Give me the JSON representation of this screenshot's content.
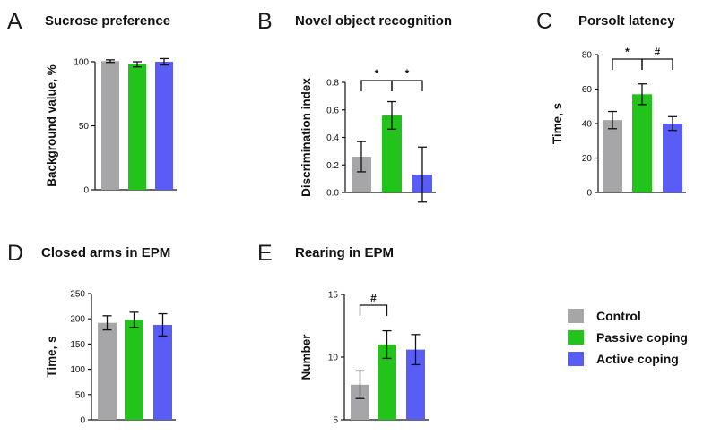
{
  "legend": {
    "items": [
      {
        "label": "Control",
        "color": "#a6a6a8"
      },
      {
        "label": "Passive coping",
        "color": "#22c41c"
      },
      {
        "label": "Active coping",
        "color": "#5a5cf6"
      }
    ]
  },
  "chart_data": [
    {
      "type": "bar",
      "panel_letter": "A",
      "title": "Sucrose preference",
      "ylabel": "Background value, %",
      "ylim": [
        0,
        100
      ],
      "yticks": [
        "0",
        "50",
        "100"
      ],
      "categories": [
        "Control",
        "Passive coping",
        "Active coping"
      ],
      "values": [
        100.5,
        98,
        100
      ],
      "errors": [
        1,
        2,
        2.5
      ],
      "significance": []
    },
    {
      "type": "bar",
      "panel_letter": "B",
      "title": "Novel object recognition",
      "ylabel": "Discrimination index",
      "ylim": [
        0,
        0.8
      ],
      "yticks": [
        "0.0",
        "0.2",
        "0.4",
        "0.6",
        "0.8"
      ],
      "categories": [
        "Control",
        "Passive coping",
        "Active coping"
      ],
      "values": [
        0.26,
        0.56,
        0.13
      ],
      "errors": [
        0.11,
        0.1,
        0.2
      ],
      "significance": [
        {
          "from": 0,
          "to": 1,
          "label": "*"
        },
        {
          "from": 1,
          "to": 2,
          "label": "*"
        }
      ]
    },
    {
      "type": "bar",
      "panel_letter": "C",
      "title": "Porsolt latency",
      "ylabel": "Time, s",
      "ylim": [
        0,
        80
      ],
      "yticks": [
        "0",
        "20",
        "40",
        "60",
        "80"
      ],
      "categories": [
        "Control",
        "Passive coping",
        "Active coping"
      ],
      "values": [
        42,
        57,
        40
      ],
      "errors": [
        5,
        6,
        4
      ],
      "significance": [
        {
          "from": 0,
          "to": 1,
          "label": "*"
        },
        {
          "from": 1,
          "to": 2,
          "label": "#"
        }
      ]
    },
    {
      "type": "bar",
      "panel_letter": "D",
      "title": "Closed arms in EPM",
      "ylabel": "Time, s",
      "ylim": [
        0,
        250
      ],
      "yticks": [
        "0",
        "50",
        "100",
        "150",
        "200",
        "250"
      ],
      "categories": [
        "Control",
        "Passive coping",
        "Active coping"
      ],
      "values": [
        192,
        198,
        188
      ],
      "errors": [
        14,
        15,
        22
      ],
      "significance": []
    },
    {
      "type": "bar",
      "panel_letter": "E",
      "title": "Rearing in EPM",
      "ylabel": "Number",
      "ylim": [
        5,
        15
      ],
      "yticks": [
        "5",
        "10",
        "15"
      ],
      "categories": [
        "Control",
        "Passive coping",
        "Active coping"
      ],
      "values": [
        7.8,
        11,
        10.6
      ],
      "errors": [
        1.1,
        1.1,
        1.2
      ],
      "significance": [
        {
          "from": 0,
          "to": 1,
          "label": "#"
        }
      ]
    }
  ]
}
